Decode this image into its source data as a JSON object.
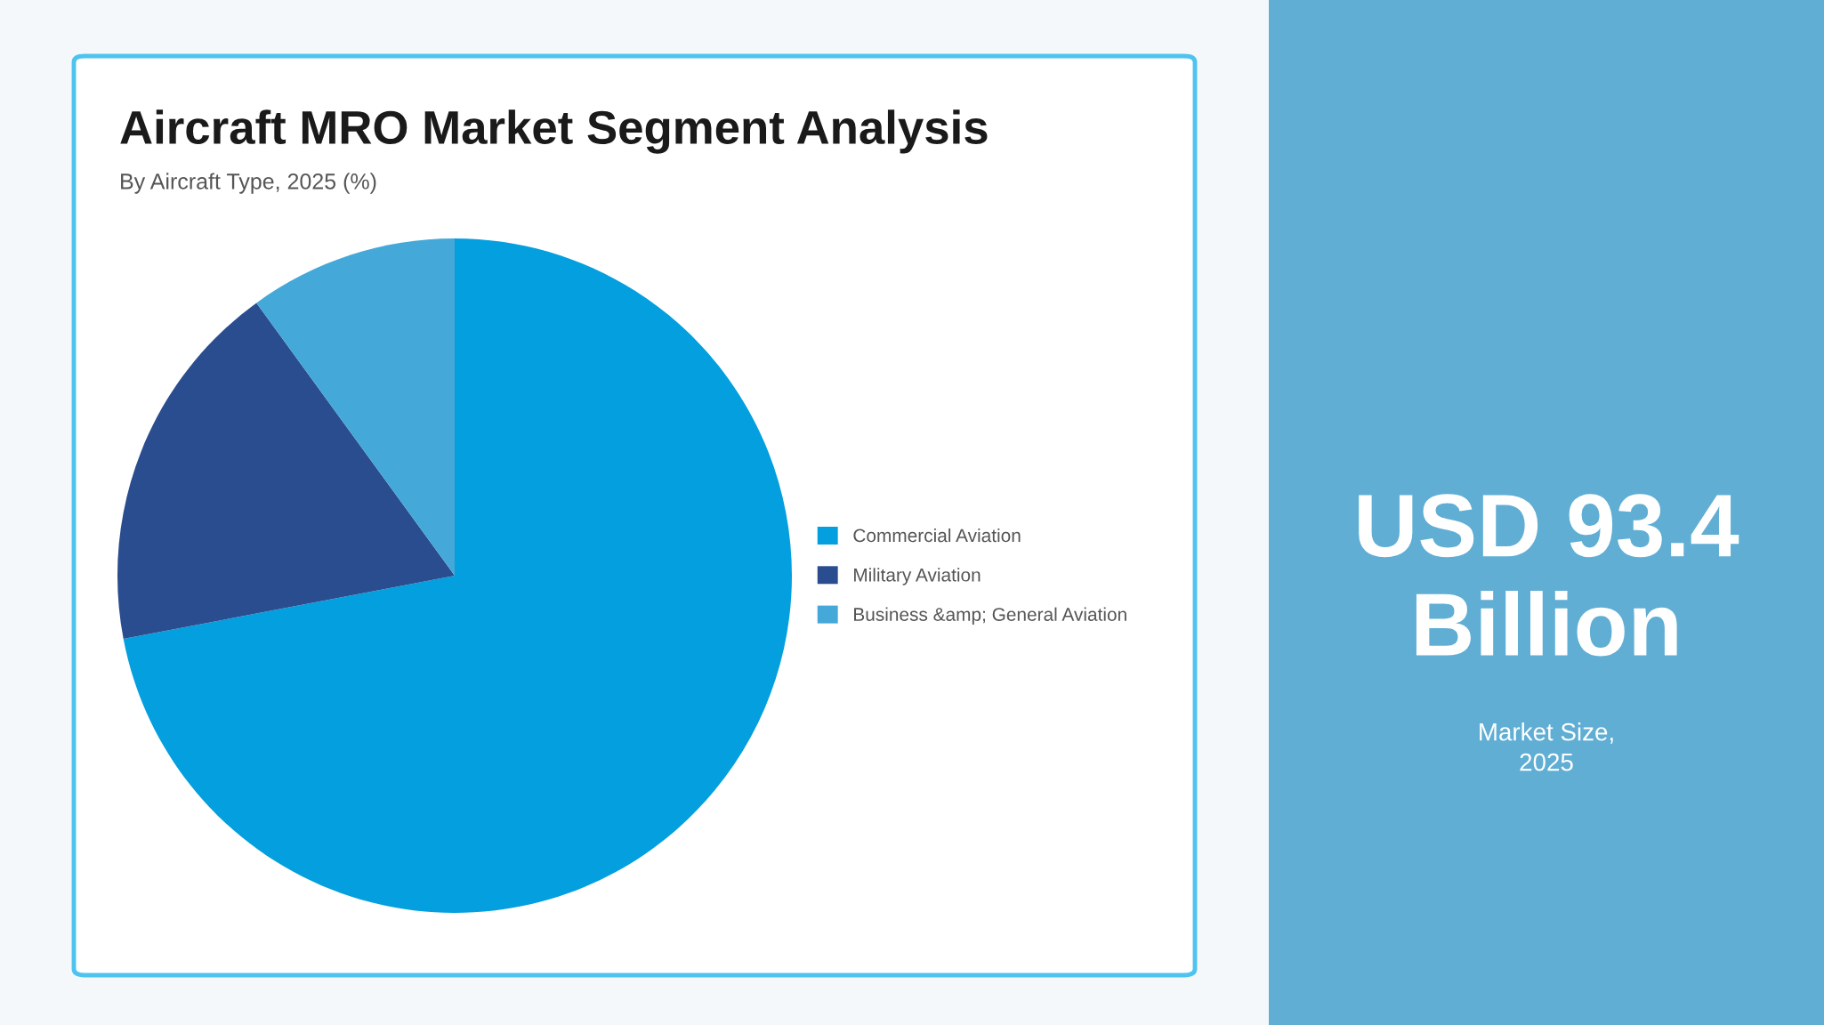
{
  "chart_data": {
    "type": "pie",
    "title": "Aircraft MRO Market Segment Analysis",
    "subtitle": "By Aircraft Type, 2025 (%)",
    "categories": [
      "Commercial Aviation",
      "Military Aviation",
      "Business &amp; General Aviation"
    ],
    "values": [
      72,
      18,
      10
    ],
    "colors": [
      "#039fde",
      "#2a4d8f",
      "#44a8d8"
    ],
    "legend": "right",
    "annotations": [
      "USD 93.4 Billion",
      "Market Size, 2025"
    ]
  }
}
